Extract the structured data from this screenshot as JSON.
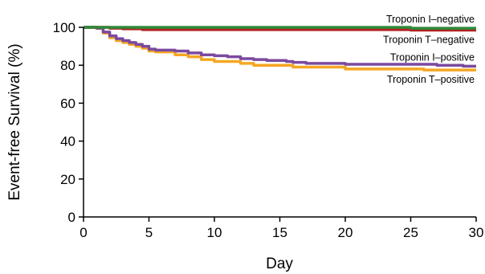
{
  "chart_data": {
    "type": "line",
    "xlabel": "Day",
    "ylabel": "Event-free Survival (%)",
    "xlim": [
      0,
      30
    ],
    "ylim": [
      0,
      100
    ],
    "xticks": [
      0,
      5,
      10,
      15,
      20,
      25,
      30
    ],
    "yticks": [
      0,
      20,
      40,
      60,
      80,
      100
    ],
    "grid": false,
    "series": [
      {
        "name": "Troponin I–negative",
        "color": "#2e8b3a",
        "x": [
          0,
          1,
          25,
          30
        ],
        "y": [
          100,
          100,
          99.5,
          99.5
        ]
      },
      {
        "name": "Troponin T–negative",
        "color": "#b22222",
        "x": [
          0,
          1,
          2,
          3,
          4.5,
          25,
          30
        ],
        "y": [
          100,
          100,
          99.5,
          99.2,
          98.8,
          98.5,
          98.5
        ]
      },
      {
        "name": "Troponin I–positive",
        "color": "#7b4a9e",
        "x": [
          0,
          1,
          1.5,
          2,
          2.5,
          3,
          3.5,
          4,
          4.5,
          5,
          5.5,
          6,
          7,
          8,
          9,
          10,
          11,
          12,
          13,
          14,
          15,
          15.5,
          16,
          17,
          18,
          19,
          20,
          21,
          22,
          23,
          24,
          25,
          26,
          27,
          28,
          29,
          30
        ],
        "y": [
          100,
          99.5,
          97.5,
          95.5,
          94,
          93,
          92,
          91,
          90,
          88.5,
          88,
          88,
          87.5,
          86.5,
          85.5,
          85,
          84.5,
          83.5,
          83,
          82.5,
          82.5,
          82,
          81.5,
          81,
          81,
          81,
          80.5,
          80.5,
          80.5,
          80.5,
          80.5,
          80.5,
          80.5,
          80,
          80,
          79.5,
          79.5
        ]
      },
      {
        "name": "Troponin T–positive",
        "color": "#f5a623",
        "x": [
          0,
          1,
          1.5,
          2,
          2.5,
          3,
          3.5,
          4,
          4.5,
          5,
          5.5,
          6,
          7,
          8,
          9,
          10,
          11,
          12,
          13,
          14,
          15,
          16,
          17,
          18,
          19,
          20,
          21,
          22,
          23,
          24,
          25,
          26,
          27,
          28,
          29,
          30
        ],
        "y": [
          100,
          99.5,
          97,
          94.5,
          93,
          92,
          91,
          90,
          89,
          87.5,
          87,
          87,
          85.5,
          84.5,
          83,
          82,
          82,
          81,
          80,
          80,
          80,
          79,
          79,
          79,
          79,
          78,
          78,
          78,
          78,
          78,
          78,
          77.5,
          77.5,
          77.5,
          77.5,
          77.5
        ]
      }
    ],
    "label_layout": [
      {
        "series": 0,
        "anchor": "right",
        "position": "above-line"
      },
      {
        "series": 1,
        "anchor": "right",
        "position": "below-line"
      },
      {
        "series": 2,
        "anchor": "right",
        "position": "above-line"
      },
      {
        "series": 3,
        "anchor": "right",
        "position": "below-line"
      }
    ]
  }
}
